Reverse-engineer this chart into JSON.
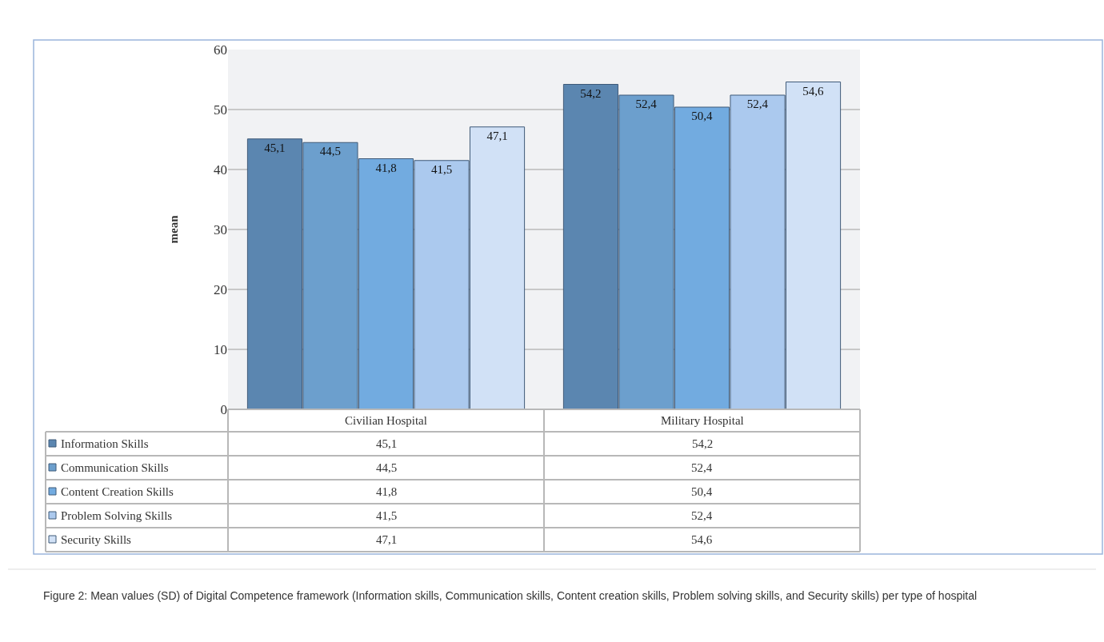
{
  "chart_data": {
    "type": "bar",
    "ylabel": "mean",
    "categories": [
      "Civilian Hospital",
      "Military Hospital"
    ],
    "series": [
      {
        "name": "Information Skills",
        "color": "#5b86b0",
        "values": [
          45.1,
          54.2
        ],
        "value_labels": [
          "45,1",
          "54,2"
        ]
      },
      {
        "name": "Communication Skills",
        "color": "#6c9fcd",
        "values": [
          44.5,
          52.4
        ],
        "value_labels": [
          "44,5",
          "52,4"
        ]
      },
      {
        "name": "Content Creation Skills",
        "color": "#72abe0",
        "values": [
          41.8,
          50.4
        ],
        "value_labels": [
          "41,8",
          "50,4"
        ]
      },
      {
        "name": "Problem Solving Skills",
        "color": "#abc9ee",
        "values": [
          41.5,
          52.4
        ],
        "value_labels": [
          "41,5",
          "52,4"
        ]
      },
      {
        "name": "Security Skills",
        "color": "#d1e1f6",
        "values": [
          47.1,
          54.6
        ],
        "value_labels": [
          "47,1",
          "54,6"
        ]
      }
    ],
    "ylim": [
      0,
      60
    ],
    "yticks": [
      0,
      10,
      20,
      30,
      40,
      50,
      60
    ],
    "grid": "y",
    "legend": "bottom",
    "annotations": [
      "Figure 2: Mean values (SD) of Digital Competence framework (Information skills, Communication skills, Content creation skills, Problem solving skills, and Security skills) per type of hospital"
    ]
  }
}
